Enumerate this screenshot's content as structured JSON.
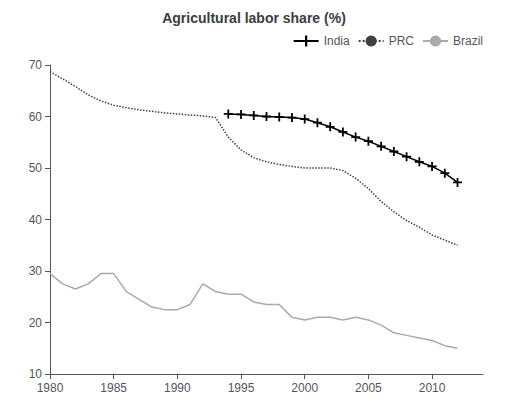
{
  "chart_data": {
    "type": "line",
    "title": "Agricultural labor share (%)",
    "series": [
      {
        "name": "India",
        "color": "#000000",
        "marker": "+",
        "line_style": "solid",
        "x": [
          1994,
          1995,
          1996,
          1997,
          1998,
          1999,
          2000,
          2001,
          2002,
          2003,
          2004,
          2005,
          2006,
          2007,
          2008,
          2009,
          2010,
          2011,
          2012
        ],
        "values": [
          60.5,
          60.4,
          60.2,
          60.0,
          59.9,
          59.8,
          59.5,
          58.8,
          58.0,
          57.0,
          56.0,
          55.2,
          54.2,
          53.2,
          52.2,
          51.2,
          50.3,
          49.0,
          47.2
        ]
      },
      {
        "name": "PRC",
        "color": "#404040",
        "marker": "none",
        "line_style": "dotted",
        "x": [
          1980,
          1981,
          1982,
          1983,
          1984,
          1985,
          1986,
          1987,
          1988,
          1989,
          1990,
          1991,
          1992,
          1993,
          1994,
          1995,
          1996,
          1997,
          1998,
          1999,
          2000,
          2001,
          2002,
          2003,
          2004,
          2005,
          2006,
          2007,
          2008,
          2009,
          2010,
          2011,
          2012
        ],
        "values": [
          68.7,
          67.3,
          65.8,
          64.2,
          63.0,
          62.2,
          61.7,
          61.3,
          61.0,
          60.7,
          60.5,
          60.3,
          60.1,
          59.8,
          56.0,
          53.5,
          52.0,
          51.2,
          50.7,
          50.3,
          50.0,
          50.0,
          50.0,
          49.5,
          48.0,
          46.0,
          43.5,
          41.5,
          39.8,
          38.5,
          37.0,
          36.0,
          35.0
        ]
      },
      {
        "name": "Brazil",
        "color": "#aaaaaa",
        "marker": "none",
        "line_style": "solid",
        "x": [
          1980,
          1981,
          1982,
          1983,
          1984,
          1985,
          1986,
          1987,
          1988,
          1989,
          1990,
          1991,
          1992,
          1993,
          1994,
          1995,
          1996,
          1997,
          1998,
          1999,
          2000,
          2001,
          2002,
          2003,
          2004,
          2005,
          2006,
          2007,
          2008,
          2009,
          2010,
          2011,
          2012
        ],
        "values": [
          29.5,
          27.5,
          26.5,
          27.5,
          29.5,
          29.5,
          26.0,
          24.5,
          23.0,
          22.5,
          22.5,
          23.5,
          27.5,
          26.0,
          25.5,
          25.5,
          24.0,
          23.5,
          23.5,
          21.0,
          20.5,
          21.0,
          21.0,
          20.5,
          21.0,
          20.5,
          19.5,
          18.0,
          17.5,
          17.0,
          16.5,
          15.5,
          15.0
        ]
      }
    ],
    "xlim": [
      1980,
      2014
    ],
    "xticks": [
      1980,
      1985,
      1990,
      1995,
      2000,
      2005,
      2010
    ],
    "ylim": [
      10,
      70
    ],
    "yticks": [
      10,
      20,
      30,
      40,
      50,
      60,
      70
    ],
    "grid": false,
    "legend": "upper right"
  }
}
